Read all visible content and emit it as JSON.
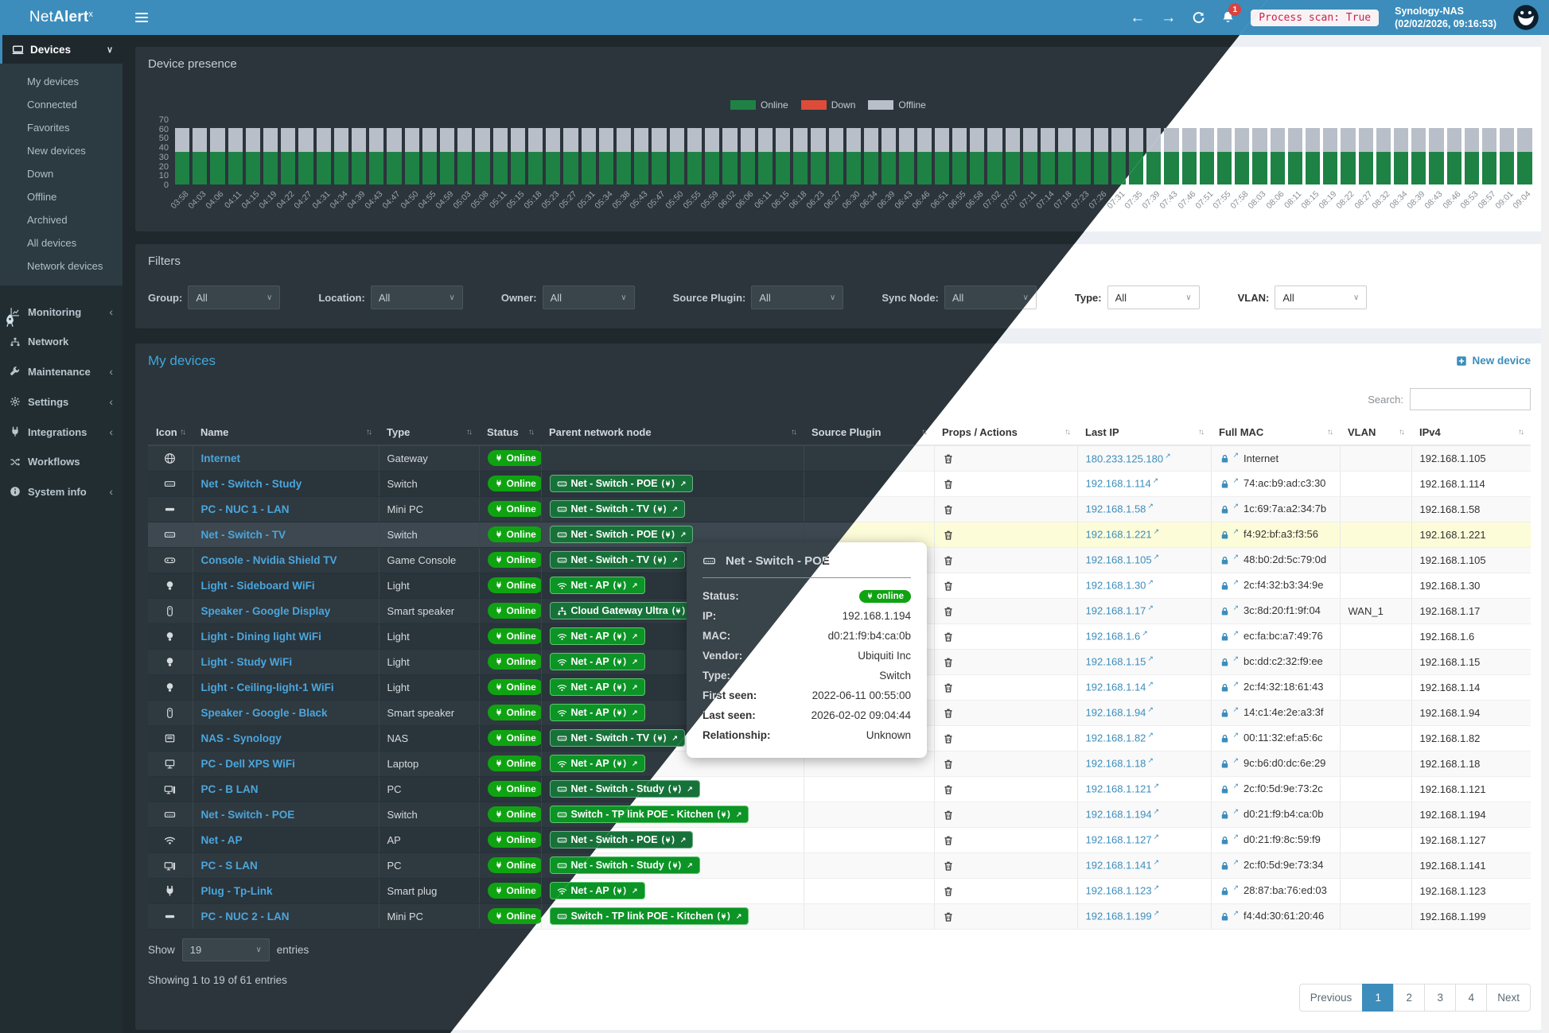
{
  "topbar": {
    "brand_pre": "Net",
    "brand_bold": "Alert",
    "brand_sup": "x",
    "notif_count": "1",
    "process_scan": "Process scan: True",
    "host": "Synology-NAS",
    "timestamp": "(02/02/2026, 09:16:53)"
  },
  "icons": {
    "back": "←",
    "forward": "→",
    "ext": "↗",
    "sort": "↑↓",
    "caret": "∨",
    "chevron_left": "‹",
    "chevron_down": "∨"
  },
  "sidebar": {
    "devices_label": "Devices",
    "submenu": [
      "My devices",
      "Connected",
      "Favorites",
      "New devices",
      "Down",
      "Offline",
      "Archived",
      "All devices",
      "Network devices"
    ],
    "items": [
      {
        "icon": "chart",
        "label": "Monitoring",
        "chev": true
      },
      {
        "icon": "hub",
        "label": "Network",
        "chev": false
      },
      {
        "icon": "wrench",
        "label": "Maintenance",
        "chev": true
      },
      {
        "icon": "gear",
        "label": "Settings",
        "chev": true
      },
      {
        "icon": "plug",
        "label": "Integrations",
        "chev": true
      },
      {
        "icon": "shuffle",
        "label": "Workflows",
        "chev": false
      },
      {
        "icon": "info",
        "label": "System info",
        "chev": true
      }
    ]
  },
  "chart_data": {
    "type": "bar",
    "title": "Device presence",
    "stacked": true,
    "legend_position": "top-right",
    "ylim": [
      0,
      70
    ],
    "yticks": [
      0,
      10,
      20,
      30,
      40,
      50,
      60,
      70
    ],
    "x": [
      "03:58",
      "04:03",
      "04:06",
      "04:11",
      "04:15",
      "04:19",
      "04:22",
      "04:27",
      "04:31",
      "04:34",
      "04:39",
      "04:43",
      "04:47",
      "04:50",
      "04:55",
      "04:59",
      "05:03",
      "05:08",
      "05:11",
      "05:15",
      "05:18",
      "05:23",
      "05:27",
      "05:31",
      "05:34",
      "05:38",
      "05:43",
      "05:47",
      "05:50",
      "05:55",
      "05:59",
      "06:02",
      "06:06",
      "06:11",
      "06:15",
      "06:18",
      "06:23",
      "06:27",
      "06:30",
      "06:34",
      "06:39",
      "06:43",
      "06:46",
      "06:51",
      "06:55",
      "06:58",
      "07:02",
      "07:07",
      "07:11",
      "07:14",
      "07:18",
      "07:23",
      "07:26",
      "07:31",
      "07:35",
      "07:39",
      "07:43",
      "07:46",
      "07:51",
      "07:55",
      "07:58",
      "08:03",
      "08:06",
      "08:11",
      "08:15",
      "08:19",
      "08:22",
      "08:27",
      "08:32",
      "08:34",
      "08:39",
      "08:43",
      "08:46",
      "08:53",
      "08:57",
      "09:01",
      "09:04"
    ],
    "series": [
      {
        "name": "Online",
        "color": "#1e8245",
        "values": [
          35,
          35,
          35,
          35,
          35,
          35,
          35,
          35,
          35,
          35,
          35,
          35,
          35,
          35,
          35,
          35,
          35,
          35,
          35,
          35,
          35,
          35,
          35,
          35,
          35,
          35,
          35,
          35,
          35,
          35,
          35,
          35,
          35,
          35,
          35,
          35,
          35,
          35,
          35,
          35,
          35,
          35,
          35,
          35,
          35,
          35,
          35,
          35,
          35,
          35,
          35,
          35,
          35,
          35,
          35,
          35,
          35,
          35,
          35,
          35,
          35,
          35,
          35,
          35,
          35,
          35,
          35,
          35,
          35,
          35,
          35,
          35,
          35,
          35,
          35,
          35,
          35
        ]
      },
      {
        "name": "Down",
        "color": "#dd4b39",
        "values": [
          0,
          0,
          0,
          0,
          0,
          0,
          0,
          0,
          0,
          0,
          0,
          0,
          0,
          0,
          0,
          0,
          0,
          0,
          0,
          0,
          0,
          0,
          0,
          0,
          0,
          0,
          0,
          0,
          0,
          0,
          0,
          0,
          0,
          0,
          0,
          0,
          0,
          0,
          0,
          0,
          0,
          0,
          0,
          0,
          0,
          0,
          0,
          0,
          0,
          0,
          0,
          0,
          0,
          0,
          0,
          0,
          0,
          0,
          0,
          0,
          0,
          0,
          0,
          0,
          0,
          0,
          0,
          0,
          0,
          0,
          0,
          0,
          0,
          0,
          0,
          0,
          0
        ]
      },
      {
        "name": "Offline",
        "color": "#b9bfc9",
        "values": [
          26,
          26,
          26,
          26,
          26,
          26,
          26,
          26,
          26,
          26,
          26,
          26,
          26,
          26,
          26,
          26,
          26,
          26,
          26,
          26,
          26,
          26,
          26,
          26,
          26,
          26,
          26,
          26,
          26,
          26,
          26,
          26,
          26,
          26,
          26,
          26,
          26,
          26,
          26,
          26,
          26,
          26,
          26,
          26,
          26,
          26,
          26,
          26,
          26,
          26,
          26,
          26,
          26,
          26,
          26,
          26,
          26,
          26,
          26,
          26,
          26,
          26,
          26,
          26,
          26,
          26,
          26,
          26,
          26,
          26,
          26,
          26,
          26,
          26,
          26,
          26,
          26
        ]
      }
    ]
  },
  "filters": {
    "title": "Filters",
    "items": [
      {
        "label": "Group:",
        "value": "All"
      },
      {
        "label": "Location:",
        "value": "All"
      },
      {
        "label": "Owner:",
        "value": "All"
      },
      {
        "label": "Source Plugin:",
        "value": "All"
      },
      {
        "label": "Sync Node:",
        "value": "All"
      },
      {
        "label": "Type:",
        "value": "All"
      },
      {
        "label": "VLAN:",
        "value": "All"
      }
    ]
  },
  "table": {
    "title": "My devices",
    "new_device": "New device",
    "search_label": "Search:",
    "search_value": "",
    "show_label": "Show",
    "show_value": "19",
    "entries_label": "entries",
    "summary": "Showing 1 to 19 of 61 entries",
    "columns": [
      {
        "label": "Icon"
      },
      {
        "label": "Name"
      },
      {
        "label": "Type"
      },
      {
        "label": "Status"
      },
      {
        "label": "Parent network node"
      },
      {
        "label": "Source Plugin"
      },
      {
        "label": "Props / Actions"
      },
      {
        "label": "Last IP"
      },
      {
        "label": "Full MAC"
      },
      {
        "label": "VLAN"
      },
      {
        "label": "IPv4"
      }
    ],
    "rows": [
      {
        "icon": "globe",
        "name": "Internet",
        "type": "Gateway",
        "status": "Online",
        "parent": null,
        "source_plugin": "",
        "last_ip": "180.233.125.180",
        "mac": "Internet",
        "vlan": "",
        "ipv4": "192.168.1.105",
        "highlight": false
      },
      {
        "icon": "switchbox",
        "name": "Net - Switch - Study",
        "type": "Switch",
        "status": "Online",
        "parent": {
          "label": "Net - Switch - POE",
          "icon": "switchbox",
          "bright": false
        },
        "source_plugin": "",
        "last_ip": "192.168.1.114",
        "mac": "74:ac:b9:ad:c3:30",
        "vlan": "",
        "ipv4": "192.168.1.114",
        "highlight": false
      },
      {
        "icon": "minipc",
        "name": "PC - NUC 1 - LAN",
        "type": "Mini PC",
        "status": "Online",
        "parent": {
          "label": "Net - Switch - TV",
          "icon": "switchbox",
          "bright": false
        },
        "source_plugin": "",
        "last_ip": "192.168.1.58",
        "mac": "1c:69:7a:a2:34:7b",
        "vlan": "",
        "ipv4": "192.168.1.58",
        "highlight": false
      },
      {
        "icon": "switchbox",
        "name": "Net - Switch - TV",
        "type": "Switch",
        "status": "Online",
        "parent": {
          "label": "Net - Switch - POE",
          "icon": "switchbox",
          "bright": false
        },
        "source_plugin": "",
        "last_ip": "192.168.1.221",
        "mac": "f4:92:bf:a3:f3:56",
        "vlan": "",
        "ipv4": "192.168.1.221",
        "highlight": true
      },
      {
        "icon": "gamepad",
        "name": "Console - Nvidia Shield TV",
        "type": "Game Console",
        "status": "Online",
        "parent": {
          "label": "Net - Switch - TV",
          "icon": "switchbox",
          "bright": false
        },
        "source_plugin": "",
        "last_ip": "192.168.1.105",
        "mac": "48:b0:2d:5c:79:0d",
        "vlan": "",
        "ipv4": "192.168.1.105",
        "highlight": false
      },
      {
        "icon": "bulb",
        "name": "Light - Sideboard WiFi",
        "type": "Light",
        "status": "Online",
        "parent": {
          "label": "Net - AP",
          "icon": "wifi",
          "bright": true
        },
        "source_plugin": "",
        "last_ip": "192.168.1.30",
        "mac": "2c:f4:32:b3:34:9e",
        "vlan": "",
        "ipv4": "192.168.1.30",
        "highlight": false
      },
      {
        "icon": "speaker",
        "name": "Speaker - Google Display",
        "type": "Smart speaker",
        "status": "Online",
        "parent": {
          "label": "Cloud Gateway Ultra",
          "icon": "hub",
          "bright": false
        },
        "source_plugin": "",
        "last_ip": "192.168.1.17",
        "mac": "3c:8d:20:f1:9f:04",
        "vlan": "WAN_1",
        "ipv4": "192.168.1.17",
        "highlight": false
      },
      {
        "icon": "bulb",
        "name": "Light - Dining light WiFi",
        "type": "Light",
        "status": "Online",
        "parent": {
          "label": "Net - AP",
          "icon": "wifi",
          "bright": true
        },
        "source_plugin": "",
        "last_ip": "192.168.1.6",
        "mac": "ec:fa:bc:a7:49:76",
        "vlan": "",
        "ipv4": "192.168.1.6",
        "highlight": false
      },
      {
        "icon": "bulb",
        "name": "Light - Study WiFi",
        "type": "Light",
        "status": "Online",
        "parent": {
          "label": "Net - AP",
          "icon": "wifi",
          "bright": true
        },
        "source_plugin": "",
        "last_ip": "192.168.1.15",
        "mac": "bc:dd:c2:32:f9:ee",
        "vlan": "",
        "ipv4": "192.168.1.15",
        "highlight": false
      },
      {
        "icon": "bulb",
        "name": "Light - Ceiling-light-1 WiFi",
        "type": "Light",
        "status": "Online",
        "parent": {
          "label": "Net - AP",
          "icon": "wifi",
          "bright": true
        },
        "source_plugin": "",
        "last_ip": "192.168.1.14",
        "mac": "2c:f4:32:18:61:43",
        "vlan": "",
        "ipv4": "192.168.1.14",
        "highlight": false
      },
      {
        "icon": "speaker",
        "name": "Speaker - Google - Black",
        "type": "Smart speaker",
        "status": "Online",
        "parent": {
          "label": "Net - AP",
          "icon": "wifi",
          "bright": true
        },
        "source_plugin": "",
        "last_ip": "192.168.1.94",
        "mac": "14:c1:4e:2e:a3:3f",
        "vlan": "",
        "ipv4": "192.168.1.94",
        "highlight": false
      },
      {
        "icon": "nas",
        "name": "NAS - Synology",
        "type": "NAS",
        "status": "Online",
        "parent": {
          "label": "Net - Switch - TV",
          "icon": "switchbox",
          "bright": false
        },
        "source_plugin": "",
        "last_ip": "192.168.1.82",
        "mac": "00:11:32:ef:a5:6c",
        "vlan": "",
        "ipv4": "192.168.1.82",
        "highlight": false
      },
      {
        "icon": "laptop",
        "name": "PC - Dell XPS WiFi",
        "type": "Laptop",
        "status": "Online",
        "parent": {
          "label": "Net - AP",
          "icon": "wifi",
          "bright": true
        },
        "source_plugin": "",
        "last_ip": "192.168.1.18",
        "mac": "9c:b6:d0:dc:6e:29",
        "vlan": "",
        "ipv4": "192.168.1.18",
        "highlight": false
      },
      {
        "icon": "pc",
        "name": "PC - B LAN",
        "type": "PC",
        "status": "Online",
        "parent": {
          "label": "Net - Switch - Study",
          "icon": "switchbox",
          "bright": false
        },
        "source_plugin": "",
        "last_ip": "192.168.1.121",
        "mac": "2c:f0:5d:9e:73:2c",
        "vlan": "",
        "ipv4": "192.168.1.121",
        "highlight": false
      },
      {
        "icon": "switchbox",
        "name": "Net - Switch - POE",
        "type": "Switch",
        "status": "Online",
        "parent": {
          "label": "Switch - TP link POE - Kitchen",
          "icon": "switchbox",
          "bright": true
        },
        "source_plugin": "",
        "last_ip": "192.168.1.194",
        "mac": "d0:21:f9:b4:ca:0b",
        "vlan": "",
        "ipv4": "192.168.1.194",
        "highlight": false
      },
      {
        "icon": "wifi",
        "name": "Net - AP",
        "type": "AP",
        "status": "Online",
        "parent": {
          "label": "Net - Switch - POE",
          "icon": "switchbox",
          "bright": false
        },
        "source_plugin": "",
        "last_ip": "192.168.1.127",
        "mac": "d0:21:f9:8c:59:f9",
        "vlan": "",
        "ipv4": "192.168.1.127",
        "highlight": false
      },
      {
        "icon": "pc",
        "name": "PC - S LAN",
        "type": "PC",
        "status": "Online",
        "parent": {
          "label": "Net - Switch - Study",
          "icon": "switchbox",
          "bright": true
        },
        "source_plugin": "",
        "last_ip": "192.168.1.141",
        "mac": "2c:f0:5d:9e:73:34",
        "vlan": "",
        "ipv4": "192.168.1.141",
        "highlight": false
      },
      {
        "icon": "plug",
        "name": "Plug - Tp-Link",
        "type": "Smart plug",
        "status": "Online",
        "parent": {
          "label": "Net - AP",
          "icon": "wifi",
          "bright": true
        },
        "source_plugin": "",
        "last_ip": "192.168.1.123",
        "mac": "28:87:ba:76:ed:03",
        "vlan": "",
        "ipv4": "192.168.1.123",
        "highlight": false
      },
      {
        "icon": "minipc",
        "name": "PC - NUC 2 - LAN",
        "type": "Mini PC",
        "status": "Online",
        "parent": {
          "label": "Switch - TP link POE - Kitchen",
          "icon": "switchbox",
          "bright": true
        },
        "source_plugin": "",
        "last_ip": "192.168.1.199",
        "mac": "f4:4d:30:61:20:46",
        "vlan": "",
        "ipv4": "192.168.1.199",
        "highlight": false
      }
    ]
  },
  "pagination": {
    "prev": "Previous",
    "pages": [
      "1",
      "2",
      "3",
      "4"
    ],
    "active": "1",
    "next": "Next"
  },
  "tooltip": {
    "title": "Net - Switch - POE",
    "fields": [
      {
        "label": "Status:",
        "pill": "online"
      },
      {
        "label": "IP:",
        "value": "192.168.1.194"
      },
      {
        "label": "MAC:",
        "value": "d0:21:f9:b4:ca:0b"
      },
      {
        "label": "Vendor:",
        "value": "Ubiquiti Inc"
      },
      {
        "label": "Type:",
        "value": "Switch"
      },
      {
        "label": "First seen:",
        "value": "2022-06-11 00:55:00"
      },
      {
        "label": "Last seen:",
        "value": "2026-02-02 09:04:44"
      },
      {
        "label": "Relationship:",
        "value": "Unknown"
      }
    ]
  },
  "colors": {
    "topbar": "#3c8dbc",
    "online_badge": "#0fa312",
    "down": "#dd4b39",
    "offline": "#b9bfc9",
    "link": "#3c8dbc",
    "highlight_row": "#fcfcd9"
  }
}
